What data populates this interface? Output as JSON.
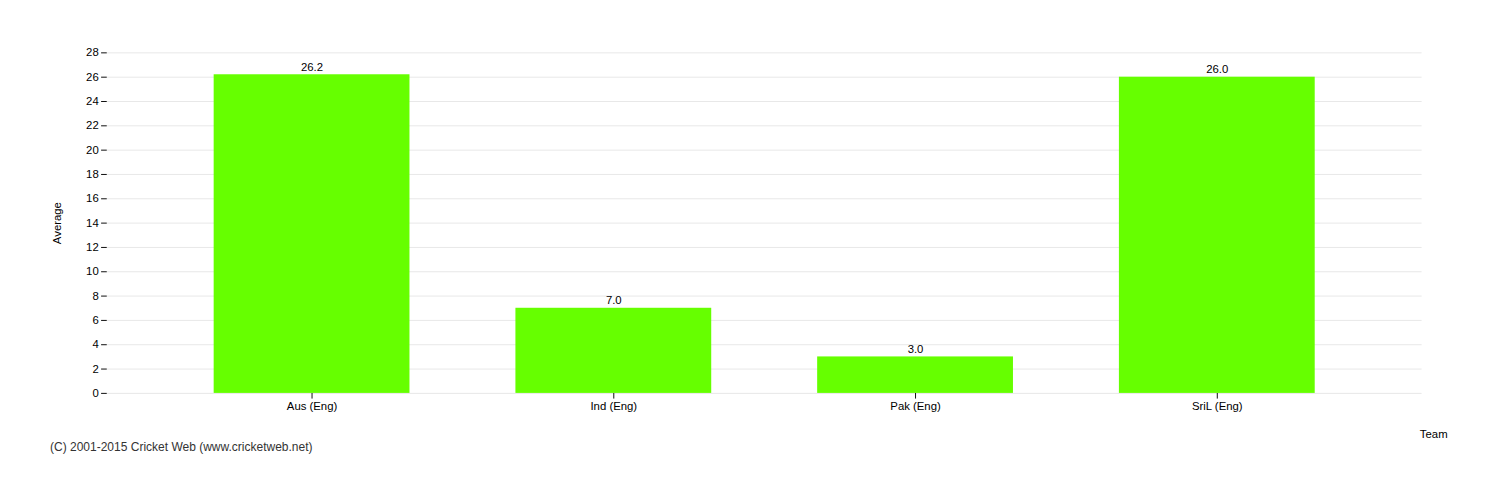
{
  "chart_data": {
    "type": "bar",
    "categories": [
      "Aus (Eng)",
      "Ind (Eng)",
      "Pak (Eng)",
      "SriL (Eng)"
    ],
    "values": [
      26.2,
      7.0,
      3.0,
      26.0
    ],
    "value_labels": [
      "26.2",
      "7.0",
      "3.0",
      "26.0"
    ],
    "color": "#66ff00",
    "xlabel": "Team",
    "ylabel": "Average",
    "ylim": [
      0,
      28
    ],
    "yticks": [
      0,
      2,
      4,
      6,
      8,
      10,
      12,
      14,
      16,
      18,
      20,
      22,
      24,
      26,
      28
    ],
    "grid": true,
    "data_labels": true,
    "annotations": [
      "(C) 2001-2015 Cricket Web (www.cricketweb.net)"
    ]
  }
}
